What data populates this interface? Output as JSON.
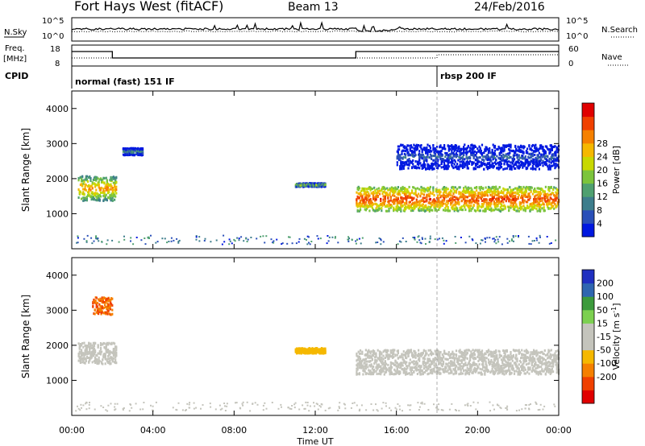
{
  "header": {
    "station": "Fort Hays West (fitACF)",
    "beam": "Beam 13",
    "date": "24/Feb/2016"
  },
  "noise_panel": {
    "left_label": "N.Sky",
    "left_ticks": [
      "10^5",
      "10^0"
    ],
    "right_label": "N.Search",
    "right_ticks": [
      "10^5",
      "10^0"
    ]
  },
  "freq_panel": {
    "left_label_1": "Freq.",
    "left_label_2": "[MHz]",
    "left_ticks": [
      "18",
      "8"
    ],
    "right_label": "Nave",
    "right_ticks": [
      "60",
      "0"
    ]
  },
  "cpid": {
    "label": "CPID",
    "modes": [
      {
        "name": "normal (fast) 151 IF",
        "start_hour": 0
      },
      {
        "name": "rbsp 200 IF",
        "start_hour": 18
      }
    ]
  },
  "chart_data": [
    {
      "type": "heatmap",
      "name": "Power",
      "ylabel": "Slant Range [km]",
      "xlabel": "Time UT",
      "xlim": [
        0,
        24
      ],
      "ylim": [
        0,
        4500
      ],
      "yticks": [
        "1000",
        "2000",
        "3000",
        "4000"
      ],
      "xticks": [
        "00:00",
        "04:00",
        "08:00",
        "12:00",
        "16:00",
        "20:00",
        "00:00"
      ],
      "colorbar_title": "Power [dB]",
      "colorbar_ticks": [
        "4",
        "8",
        "12",
        "16",
        "20",
        "24",
        "28"
      ],
      "colorbar_colors": [
        "#0018e0",
        "#2a4fb8",
        "#3d7d8c",
        "#4fa070",
        "#7cc43c",
        "#c8d800",
        "#f5b800",
        "#f58000",
        "#f04000",
        "#e00000"
      ],
      "features": [
        {
          "hours": [
            0.3,
            2.2
          ],
          "range_km": [
            1400,
            2100
          ],
          "level_db": 22
        },
        {
          "hours": [
            2.5,
            3.5
          ],
          "range_km": [
            2700,
            2900
          ],
          "level_db": 10
        },
        {
          "hours": [
            11.0,
            12.5
          ],
          "range_km": [
            1800,
            1900
          ],
          "level_db": 16
        },
        {
          "hours": [
            14.0,
            24.0
          ],
          "range_km": [
            1100,
            1800
          ],
          "level_db": 26
        },
        {
          "hours": [
            16.0,
            24.0
          ],
          "range_km": [
            2300,
            3000
          ],
          "level_db": 6
        }
      ]
    },
    {
      "type": "heatmap",
      "name": "Velocity",
      "ylabel": "Slant Range [km]",
      "xlabel": "Time UT",
      "xlim": [
        0,
        24
      ],
      "ylim": [
        0,
        4500
      ],
      "yticks": [
        "1000",
        "2000",
        "3000",
        "4000"
      ],
      "xticks": [
        "00:00",
        "04:00",
        "08:00",
        "12:00",
        "16:00",
        "20:00",
        "00:00"
      ],
      "colorbar_title_main": "Velocity [m s",
      "colorbar_title_exp": "-1",
      "colorbar_title_end": "]",
      "colorbar_ticks": [
        "200",
        "100",
        "50",
        "15",
        "-15",
        "-50",
        "-100",
        "-200"
      ],
      "colorbar_colors": [
        "#2030c0",
        "#2f66b0",
        "#3c9a3c",
        "#7cd050",
        "#c4c4bc",
        "#c4c4bc",
        "#f5b800",
        "#f58000",
        "#f04000",
        "#e00000"
      ],
      "features": [
        {
          "hours": [
            0.3,
            2.2
          ],
          "range_km": [
            1500,
            2100
          ],
          "velocity_ms": 0
        },
        {
          "hours": [
            1.0,
            2.0
          ],
          "range_km": [
            2900,
            3400
          ],
          "velocity_ms": -150
        },
        {
          "hours": [
            11.0,
            12.5
          ],
          "range_km": [
            1800,
            1950
          ],
          "velocity_ms": -80
        },
        {
          "hours": [
            14.0,
            24.0
          ],
          "range_km": [
            1200,
            1900
          ],
          "velocity_ms": 0
        }
      ]
    }
  ]
}
